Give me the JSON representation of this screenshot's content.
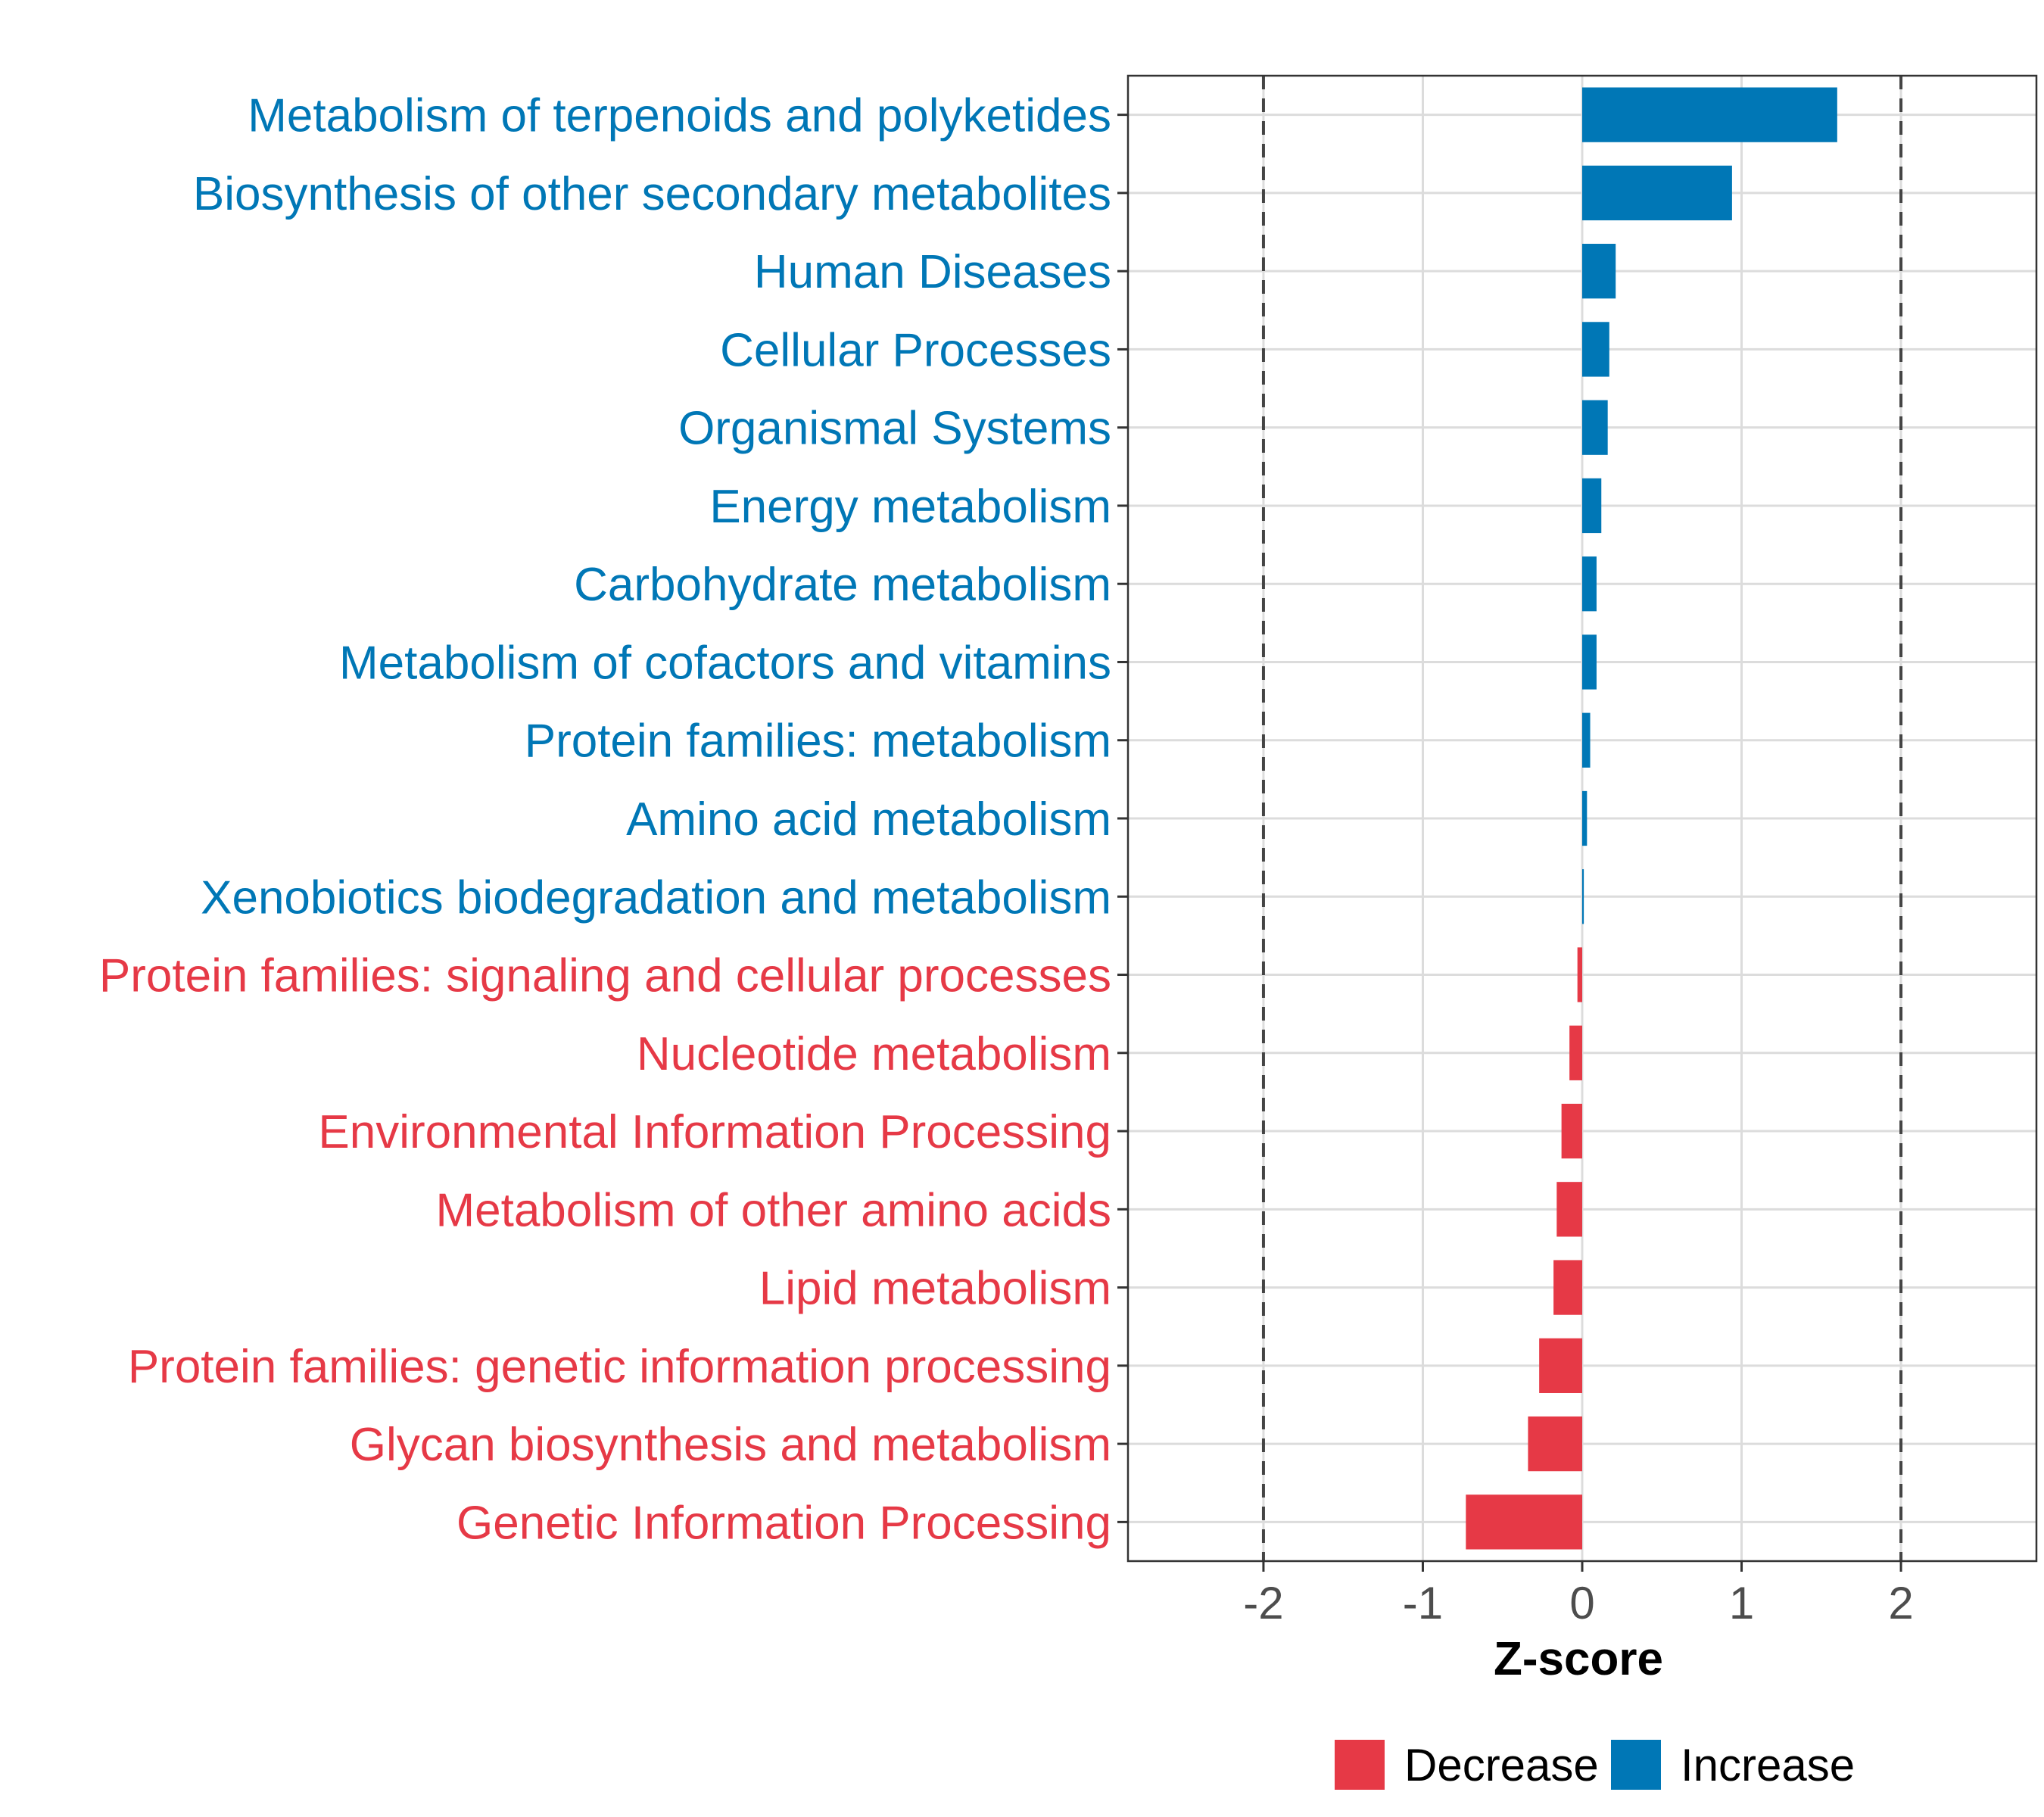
{
  "chart_data": {
    "type": "bar",
    "orientation": "horizontal",
    "xlabel": "Z-score",
    "ylabel": "",
    "xlim": [
      -2.85,
      2.85
    ],
    "xticks": [
      -2,
      -1,
      0,
      1,
      2
    ],
    "xtick_labels": [
      "-2",
      "-1",
      "0",
      "1",
      "2"
    ],
    "reference_lines": [
      -2,
      2
    ],
    "grid": true,
    "legend_position": "bottom",
    "colors": {
      "Decrease": "#E63946",
      "Increase": "#0077B6"
    },
    "legend": [
      {
        "label": "Decrease",
        "color": "#E63946"
      },
      {
        "label": "Increase",
        "color": "#0077B6"
      }
    ],
    "categories": [
      "Metabolism of terpenoids and polyketides",
      "Biosynthesis of other secondary metabolites",
      "Human Diseases",
      "Cellular Processes",
      "Organismal Systems",
      "Energy metabolism",
      "Carbohydrate metabolism",
      "Metabolism of cofactors and vitamins",
      "Protein families: metabolism",
      "Amino acid metabolism",
      "Xenobiotics biodegradation and metabolism",
      "Protein families: signaling and cellular processes",
      "Nucleotide metabolism",
      "Environmental Information Processing",
      "Metabolism of other amino acids",
      "Lipid metabolism",
      "Protein families: genetic information processing",
      "Glycan biosynthesis and metabolism",
      "Genetic Information Processing"
    ],
    "values": [
      1.6,
      0.94,
      0.21,
      0.17,
      0.16,
      0.12,
      0.09,
      0.09,
      0.05,
      0.03,
      0.01,
      -0.03,
      -0.08,
      -0.13,
      -0.16,
      -0.18,
      -0.27,
      -0.34,
      -0.73
    ],
    "groups": [
      "Increase",
      "Increase",
      "Increase",
      "Increase",
      "Increase",
      "Increase",
      "Increase",
      "Increase",
      "Increase",
      "Increase",
      "Increase",
      "Decrease",
      "Decrease",
      "Decrease",
      "Decrease",
      "Decrease",
      "Decrease",
      "Decrease",
      "Decrease"
    ]
  }
}
